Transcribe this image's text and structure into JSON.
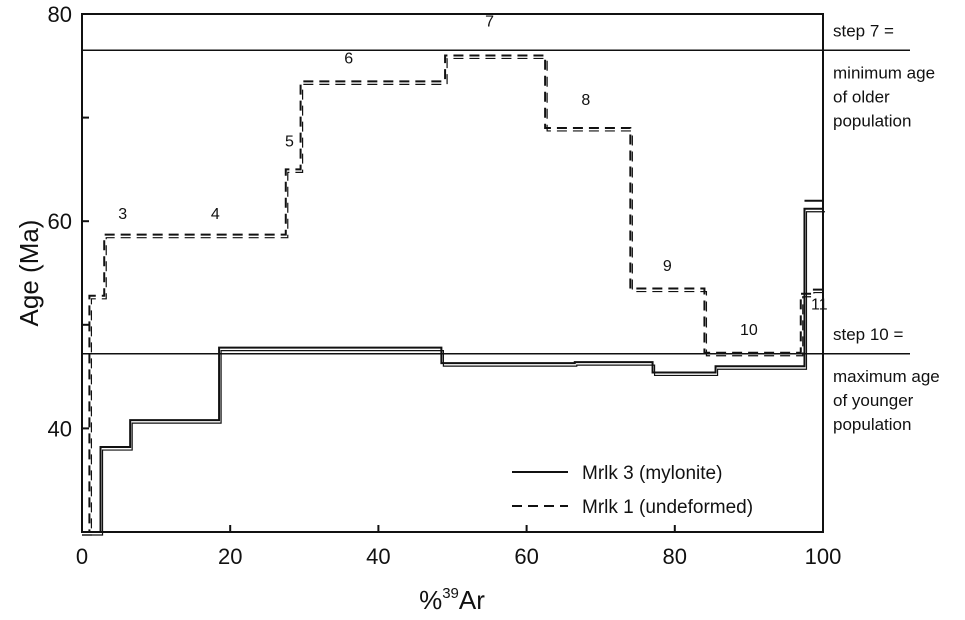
{
  "chart_data": {
    "type": "line",
    "title": "",
    "xlabel": "%",
    "xlabel_superscript": "39",
    "xlabel_suffix": "Ar",
    "ylabel": "Age (Ma)",
    "xlim": [
      0,
      100
    ],
    "ylim": [
      30,
      80
    ],
    "x_ticks": [
      0,
      20,
      40,
      60,
      80,
      100
    ],
    "y_ticks": [
      40,
      60,
      80
    ],
    "grid": false,
    "legend_position": "bottom-right",
    "series": [
      {
        "name": "Mrlk 3 (mylonite)",
        "style": "solid",
        "steps": [
          {
            "x0": 0,
            "x1": 2.5,
            "age": 30
          },
          {
            "x0": 2.5,
            "x1": 6.5,
            "age": 38.2
          },
          {
            "x0": 6.5,
            "x1": 18.5,
            "age": 40.8
          },
          {
            "x0": 18.5,
            "x1": 48.5,
            "age": 47.8
          },
          {
            "x0": 48.5,
            "x1": 66.5,
            "age": 46.3
          },
          {
            "x0": 66.5,
            "x1": 77,
            "age": 46.4
          },
          {
            "x0": 77,
            "x1": 85.5,
            "age": 45.4
          },
          {
            "x0": 85.5,
            "x1": 97.5,
            "age": 46.0
          },
          {
            "x0": 97.5,
            "x1": 100,
            "age": 61.2
          }
        ]
      },
      {
        "name": "Mrlk 1 (undeformed)",
        "style": "dashed",
        "steps": [
          {
            "x0": 0,
            "x1": 1,
            "age": 30
          },
          {
            "x0": 1,
            "x1": 3,
            "age": 52.8
          },
          {
            "x0": 3,
            "x1": 27.5,
            "age": 58.7
          },
          {
            "x0": 27.5,
            "x1": 29.5,
            "age": 65.0
          },
          {
            "x0": 29.5,
            "x1": 49,
            "age": 73.5
          },
          {
            "x0": 49,
            "x1": 62.5,
            "age": 76.0
          },
          {
            "x0": 62.5,
            "x1": 74,
            "age": 69.0
          },
          {
            "x0": 74,
            "x1": 84,
            "age": 53.5
          },
          {
            "x0": 84,
            "x1": 97,
            "age": 47.3
          },
          {
            "x0": 97,
            "x1": 98.5,
            "age": 53.0
          },
          {
            "x0": 98.5,
            "x1": 100,
            "age": 53.4
          }
        ]
      }
    ],
    "reference_lines": [
      {
        "age": 76.5,
        "note_lines": [
          "step 7 =",
          "minimum age",
          "of older",
          "population"
        ]
      },
      {
        "age": 47.2,
        "note_lines": [
          "step 10 =",
          "maximum age",
          "of younger",
          "population"
        ]
      }
    ],
    "step_labels": [
      {
        "text": "3",
        "x": 5.5,
        "age": 60.2
      },
      {
        "text": "4",
        "x": 18,
        "age": 60.2
      },
      {
        "text": "5",
        "x": 28,
        "age": 67.2
      },
      {
        "text": "6",
        "x": 36,
        "age": 75.2
      },
      {
        "text": "7",
        "x": 55,
        "age": 78.8
      },
      {
        "text": "8",
        "x": 68,
        "age": 71.2
      },
      {
        "text": "9",
        "x": 79,
        "age": 55.2
      },
      {
        "text": "10",
        "x": 90,
        "age": 49.0
      },
      {
        "text": "11",
        "x": 99.5,
        "age": 51.5
      }
    ]
  }
}
